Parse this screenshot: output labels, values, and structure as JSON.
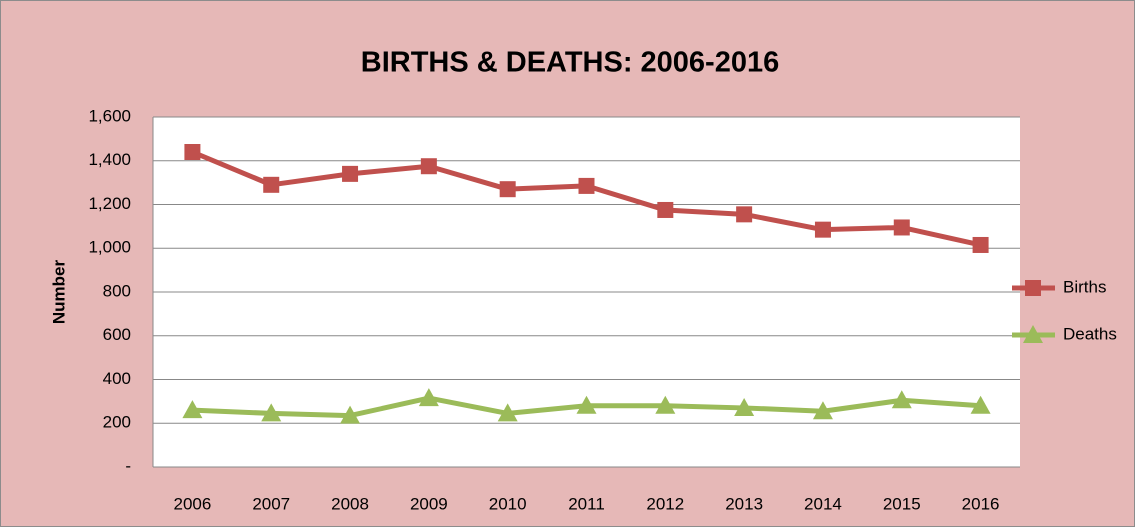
{
  "chart_data": {
    "type": "line",
    "title": "BIRTHS & DEATHS: 2006-2016",
    "y_label": "Number",
    "categories": [
      "2006",
      "2007",
      "2008",
      "2009",
      "2010",
      "2011",
      "2012",
      "2013",
      "2014",
      "2015",
      "2016"
    ],
    "series": [
      {
        "name": "Births",
        "color": "#c0504d",
        "marker": "square",
        "values": [
          1440,
          1290,
          1340,
          1375,
          1270,
          1285,
          1175,
          1155,
          1085,
          1095,
          1015
        ]
      },
      {
        "name": "Deaths",
        "color": "#9bbb59",
        "marker": "triangle",
        "values": [
          260,
          245,
          235,
          315,
          245,
          280,
          280,
          270,
          255,
          305,
          280
        ]
      }
    ],
    "ylim": [
      0,
      1600
    ],
    "yticks": [
      {
        "value": 0,
        "label": "-"
      },
      200,
      400,
      600,
      800,
      {
        "value": 1000,
        "label": "1,000"
      },
      {
        "value": 1200,
        "label": "1,200"
      },
      {
        "value": 1400,
        "label": "1,400"
      },
      {
        "value": 1600,
        "label": "1,600"
      }
    ],
    "grid": true,
    "legend": "right"
  }
}
